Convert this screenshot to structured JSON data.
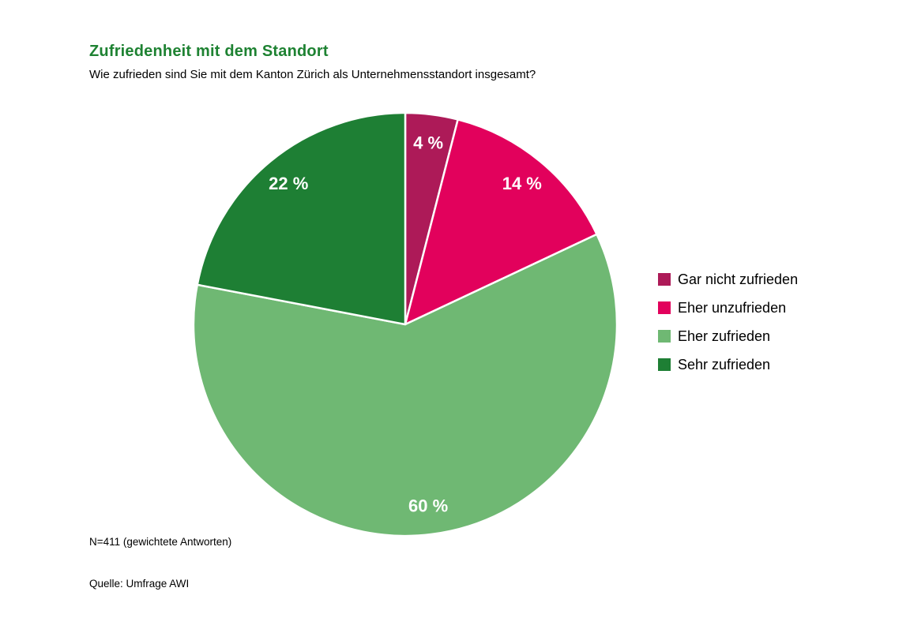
{
  "header": {
    "title": "Zufriedenheit mit dem Standort",
    "question": "Wie zufrieden sind Sie mit dem Kanton Zürich als Unternehmensstandort insgesamt?"
  },
  "footer": {
    "note": "N=411 (gewichtete Antworten)",
    "source": "Quelle: Umfrage AWI"
  },
  "colors": {
    "title_green": "#1e8232",
    "slice_border": "#ffffff",
    "slice_label_text": "#ffffff"
  },
  "chart_data": {
    "type": "pie",
    "title": "Zufriedenheit mit dem Standort",
    "question": "Wie zufrieden sind Sie mit dem Kanton Zürich als Unternehmensstandort insgesamt?",
    "start_angle_deg": 0,
    "direction": "clockwise",
    "legend_position": "right",
    "slices": [
      {
        "label": "Gar nicht zufrieden",
        "value": 4,
        "display": "4 %",
        "color": "#ad1a58"
      },
      {
        "label": "Eher unzufrieden",
        "value": 14,
        "display": "14 %",
        "color": "#e2015c"
      },
      {
        "label": "Eher zufrieden",
        "value": 60,
        "display": "60 %",
        "color": "#6fb873"
      },
      {
        "label": "Sehr zufrieden",
        "value": 22,
        "display": "22 %",
        "color": "#1e7f34"
      }
    ]
  }
}
